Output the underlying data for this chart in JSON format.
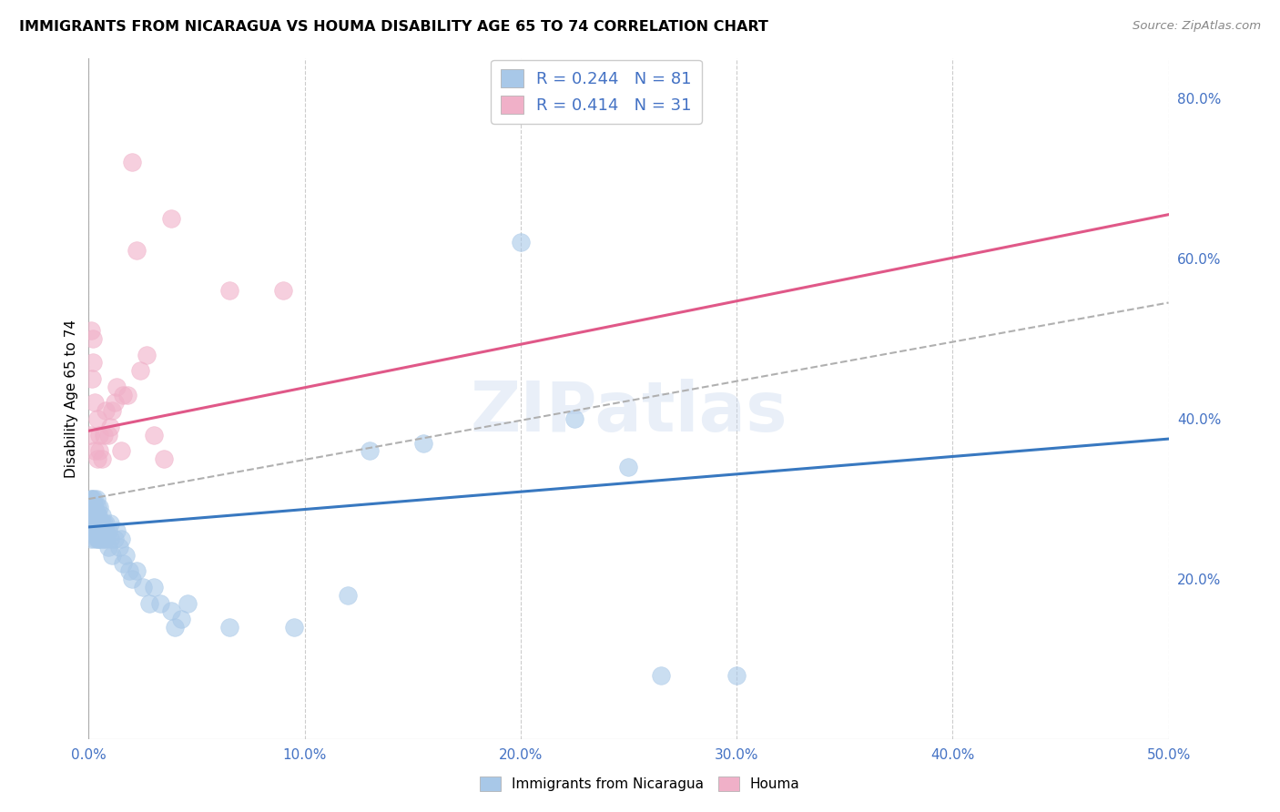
{
  "title": "IMMIGRANTS FROM NICARAGUA VS HOUMA DISABILITY AGE 65 TO 74 CORRELATION CHART",
  "source": "Source: ZipAtlas.com",
  "ylabel": "Disability Age 65 to 74",
  "xlim": [
    0.0,
    0.5
  ],
  "ylim": [
    0.0,
    0.85
  ],
  "x_ticks": [
    0.0,
    0.1,
    0.2,
    0.3,
    0.4,
    0.5
  ],
  "x_tick_labels": [
    "0.0%",
    "10.0%",
    "20.0%",
    "30.0%",
    "40.0%",
    "50.0%"
  ],
  "y_ticks_right": [
    0.2,
    0.4,
    0.6,
    0.8
  ],
  "y_tick_labels_right": [
    "20.0%",
    "40.0%",
    "60.0%",
    "80.0%"
  ],
  "blue_color": "#a8c8e8",
  "pink_color": "#f0b0c8",
  "trend_blue": "#3878c0",
  "trend_pink": "#e05888",
  "trend_dash": "#b0b0b0",
  "R_blue": 0.244,
  "N_blue": 81,
  "R_pink": 0.414,
  "N_pink": 31,
  "watermark": "ZIPatlas",
  "blue_scatter_x": [
    0.0005,
    0.0008,
    0.001,
    0.001,
    0.0012,
    0.0013,
    0.0015,
    0.0015,
    0.0016,
    0.0017,
    0.0018,
    0.002,
    0.002,
    0.002,
    0.0022,
    0.0022,
    0.0023,
    0.0023,
    0.0025,
    0.0025,
    0.0026,
    0.0027,
    0.003,
    0.003,
    0.003,
    0.0032,
    0.0032,
    0.0035,
    0.0035,
    0.004,
    0.004,
    0.004,
    0.004,
    0.0042,
    0.0043,
    0.0045,
    0.005,
    0.005,
    0.005,
    0.005,
    0.006,
    0.006,
    0.006,
    0.007,
    0.007,
    0.007,
    0.008,
    0.008,
    0.008,
    0.009,
    0.009,
    0.01,
    0.01,
    0.011,
    0.012,
    0.013,
    0.014,
    0.015,
    0.016,
    0.017,
    0.019,
    0.02,
    0.022,
    0.025,
    0.028,
    0.03,
    0.033,
    0.038,
    0.04,
    0.043,
    0.046,
    0.065,
    0.095,
    0.12,
    0.13,
    0.155,
    0.2,
    0.225,
    0.25,
    0.265,
    0.3
  ],
  "blue_scatter_y": [
    0.27,
    0.28,
    0.3,
    0.26,
    0.27,
    0.25,
    0.28,
    0.3,
    0.26,
    0.29,
    0.27,
    0.28,
    0.27,
    0.26,
    0.28,
    0.3,
    0.26,
    0.27,
    0.29,
    0.26,
    0.27,
    0.28,
    0.27,
    0.29,
    0.25,
    0.28,
    0.26,
    0.27,
    0.3,
    0.25,
    0.28,
    0.27,
    0.26,
    0.29,
    0.25,
    0.28,
    0.27,
    0.25,
    0.26,
    0.29,
    0.28,
    0.27,
    0.25,
    0.26,
    0.25,
    0.27,
    0.25,
    0.27,
    0.26,
    0.24,
    0.26,
    0.25,
    0.27,
    0.23,
    0.25,
    0.26,
    0.24,
    0.25,
    0.22,
    0.23,
    0.21,
    0.2,
    0.21,
    0.19,
    0.17,
    0.19,
    0.17,
    0.16,
    0.14,
    0.15,
    0.17,
    0.14,
    0.14,
    0.18,
    0.36,
    0.37,
    0.62,
    0.4,
    0.34,
    0.08,
    0.08
  ],
  "pink_scatter_x": [
    0.0005,
    0.001,
    0.0015,
    0.002,
    0.002,
    0.003,
    0.003,
    0.004,
    0.004,
    0.005,
    0.005,
    0.006,
    0.007,
    0.008,
    0.009,
    0.01,
    0.011,
    0.012,
    0.013,
    0.015,
    0.016,
    0.018,
    0.02,
    0.022,
    0.024,
    0.027,
    0.03,
    0.035,
    0.038,
    0.065,
    0.09
  ],
  "pink_scatter_y": [
    0.38,
    0.51,
    0.45,
    0.47,
    0.5,
    0.36,
    0.42,
    0.35,
    0.4,
    0.38,
    0.36,
    0.35,
    0.38,
    0.41,
    0.38,
    0.39,
    0.41,
    0.42,
    0.44,
    0.36,
    0.43,
    0.43,
    0.72,
    0.61,
    0.46,
    0.48,
    0.38,
    0.35,
    0.65,
    0.56,
    0.56
  ],
  "blue_trendline_x": [
    0.0,
    0.5
  ],
  "blue_trendline_y": [
    0.265,
    0.375
  ],
  "pink_trendline_x": [
    0.0,
    0.5
  ],
  "pink_trendline_y": [
    0.385,
    0.655
  ],
  "dash_trendline_x": [
    0.0,
    0.5
  ],
  "dash_trendline_y": [
    0.3,
    0.545
  ]
}
